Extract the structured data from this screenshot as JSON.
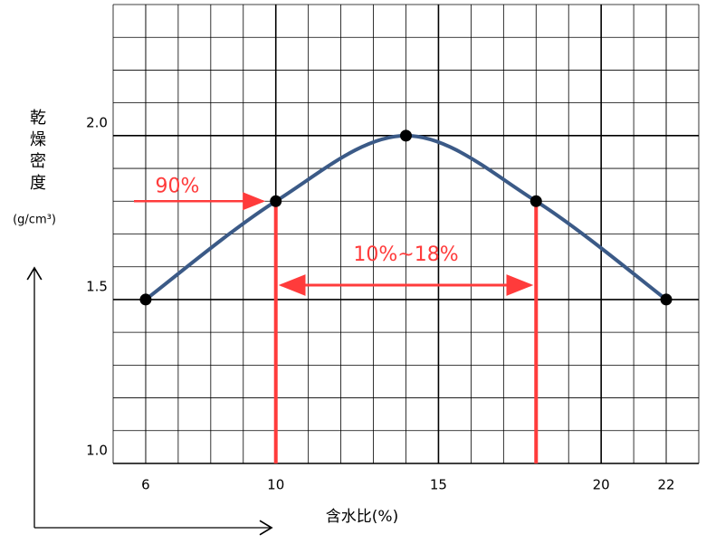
{
  "chart_data": {
    "type": "line",
    "x_label": "含水比(%)",
    "y_label": "乾燥密度",
    "y_unit": "(g/cm³)",
    "x": [
      6,
      10,
      14,
      18,
      22
    ],
    "series": [
      {
        "color": "#3b5a87",
        "values": [
          1.5,
          1.8,
          2.0,
          1.8,
          1.5
        ]
      }
    ],
    "xlim": [
      5,
      23
    ],
    "ylim": [
      1.0,
      2.4
    ],
    "xticks": [
      6,
      10,
      15,
      20,
      22
    ],
    "yticks": [
      {
        "value": 1.0,
        "label": "1.0"
      },
      1.5,
      {
        "value": 2.0,
        "label": "2.0"
      }
    ],
    "grid": true,
    "minor_grid": {
      "x": 1,
      "y": 0.1
    },
    "annotations": [
      {
        "text": "90%",
        "color": "#ff3b3b"
      },
      {
        "text": "10%~18%",
        "color": "#ff3b3b"
      }
    ]
  }
}
